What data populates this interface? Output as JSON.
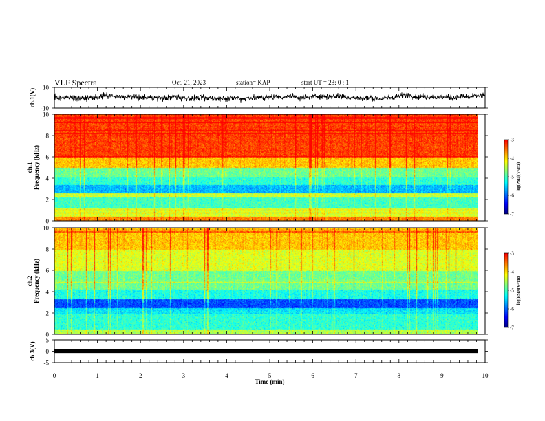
{
  "header": {
    "title": "VLF Spectra",
    "date": "Oct. 21, 2023",
    "station": "station= KAP",
    "start": "start  UT =   23: 0  : 1"
  },
  "colors": {
    "jet": [
      "#00007f",
      "#0000ff",
      "#0080ff",
      "#00ffff",
      "#7fff7f",
      "#ffff00",
      "#ff8000",
      "#ff0000"
    ],
    "ink": "#000000"
  },
  "chart_data": [
    {
      "type": "line",
      "name": "ch1-waveform",
      "ylabel": "ch.1(V)",
      "ylim": [
        -10,
        10
      ],
      "yticks": [
        "10",
        "-10"
      ],
      "xlim": [
        0,
        10
      ],
      "envelope_note": "noisy signal mostly between about -4 and +6 V",
      "level_range": [
        -4,
        6
      ]
    },
    {
      "type": "heatmap",
      "name": "ch1-spectrogram",
      "ylabel": "ch.1 Frequency (kHz)",
      "ylim": [
        0,
        10
      ],
      "yticks": [
        "0",
        "2",
        "4",
        "6",
        "8",
        "10"
      ],
      "xlim": [
        0,
        9.83
      ],
      "bands": [
        {
          "from": 0.0,
          "to": 0.4,
          "level": -3.6
        },
        {
          "from": 0.4,
          "to": 1.2,
          "level": -4.3
        },
        {
          "from": 1.2,
          "to": 2.2,
          "level": -5.0
        },
        {
          "from": 2.2,
          "to": 2.6,
          "level": -4.4
        },
        {
          "from": 2.6,
          "to": 3.4,
          "level": -5.6
        },
        {
          "from": 3.4,
          "to": 4.1,
          "level": -5.1
        },
        {
          "from": 4.1,
          "to": 5.0,
          "level": -4.8
        },
        {
          "from": 5.0,
          "to": 6.0,
          "level": -3.9
        },
        {
          "from": 6.0,
          "to": 10.0,
          "level": -3.3
        }
      ],
      "colorbar": {
        "label": "log(PSD)(V²/Hz)",
        "range": [
          -7,
          -3
        ],
        "ticks": [
          "-3",
          "-4",
          "-5",
          "-6",
          "-7"
        ]
      }
    },
    {
      "type": "heatmap",
      "name": "ch2-spectrogram",
      "ylabel": "ch.2 Frequency (kHz)",
      "ylim": [
        0,
        10
      ],
      "yticks": [
        "0",
        "2",
        "4",
        "6",
        "8",
        "10"
      ],
      "xlim": [
        0,
        9.83
      ],
      "bands": [
        {
          "from": 0.0,
          "to": 0.5,
          "level": -4.5
        },
        {
          "from": 0.5,
          "to": 2.0,
          "level": -5.1
        },
        {
          "from": 2.0,
          "to": 2.5,
          "level": -5.4
        },
        {
          "from": 2.5,
          "to": 3.3,
          "level": -6.1
        },
        {
          "from": 3.3,
          "to": 4.2,
          "level": -5.2
        },
        {
          "from": 4.2,
          "to": 6.0,
          "level": -4.8
        },
        {
          "from": 6.0,
          "to": 8.0,
          "level": -4.3
        },
        {
          "from": 8.0,
          "to": 10.0,
          "level": -3.9
        }
      ],
      "colorbar": {
        "label": "log(PSD)(V²/Hz)",
        "range": [
          -7,
          -3
        ],
        "ticks": [
          "-3",
          "-4",
          "-5",
          "-6",
          "-7"
        ]
      }
    },
    {
      "type": "line",
      "name": "ch3-waveform",
      "ylabel": "ch.3(V)",
      "ylim": [
        -5,
        5
      ],
      "yticks": [
        "5",
        "0",
        "-5"
      ],
      "xlim": [
        0,
        9.83
      ],
      "level_range": [
        -0.8,
        0.8
      ]
    }
  ],
  "xaxis": {
    "label": "Time (min)",
    "ticks": [
      "0",
      "1",
      "2",
      "3",
      "4",
      "5",
      "6",
      "7",
      "8",
      "9",
      "10"
    ],
    "range": [
      0,
      10
    ]
  }
}
